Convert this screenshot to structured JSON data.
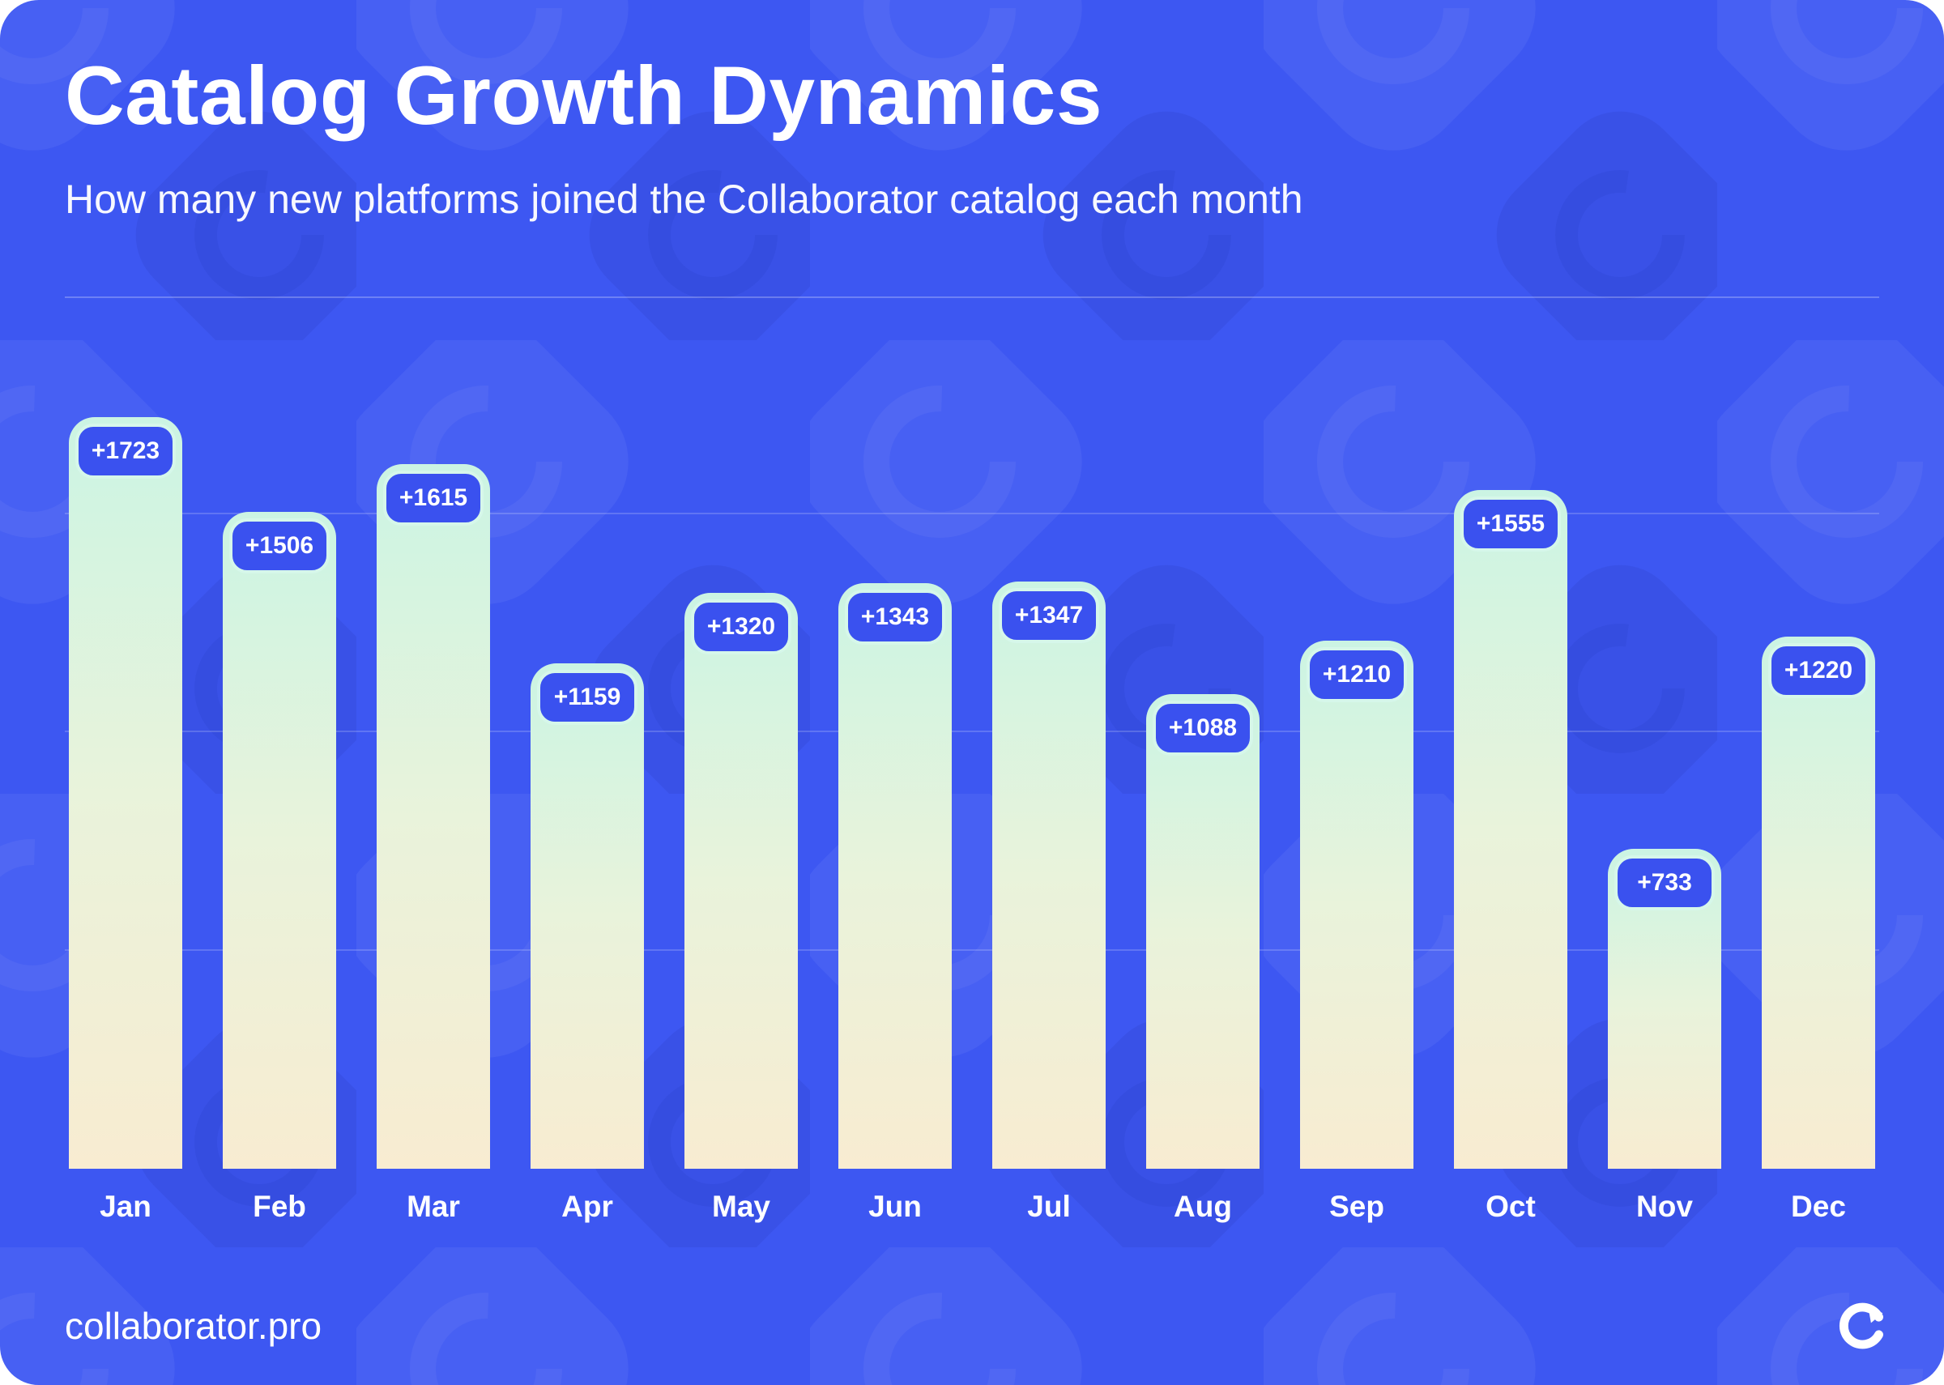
{
  "header": {
    "title": "Catalog Growth Dynamics",
    "subtitle": "How many new platforms joined the Collaborator catalog each month"
  },
  "footer": {
    "site": "collaborator.pro",
    "logo_icon": "collaborator-logo-icon"
  },
  "colors": {
    "background": "#3D57F2",
    "badge_background": "#3A51EF",
    "badge_border": "#D6F7EA",
    "bar_gradient_top": "#CBF4E3",
    "bar_gradient_bottom": "#F8ECD1",
    "text": "#FFFFFF"
  },
  "chart_data": {
    "type": "bar",
    "title": "Catalog Growth Dynamics",
    "subtitle": "How many new platforms joined the Collaborator catalog each month",
    "categories": [
      "Jan",
      "Feb",
      "Mar",
      "Apr",
      "May",
      "Jun",
      "Jul",
      "Aug",
      "Sep",
      "Oct",
      "Nov",
      "Dec"
    ],
    "values": [
      1723,
      1506,
      1615,
      1159,
      1320,
      1343,
      1347,
      1088,
      1210,
      1555,
      733,
      1220
    ],
    "value_labels": [
      "+1723",
      "+1506",
      "+1615",
      "+1159",
      "+1320",
      "+1343",
      "+1347",
      "+1088",
      "+1210",
      "+1555",
      "+733",
      "+1220"
    ],
    "xlabel": "",
    "ylabel": "",
    "ylim": [
      0,
      1750
    ],
    "gridline_values": [
      500,
      1000,
      1500
    ],
    "grid": "horizontal-faint",
    "legend": "none"
  }
}
